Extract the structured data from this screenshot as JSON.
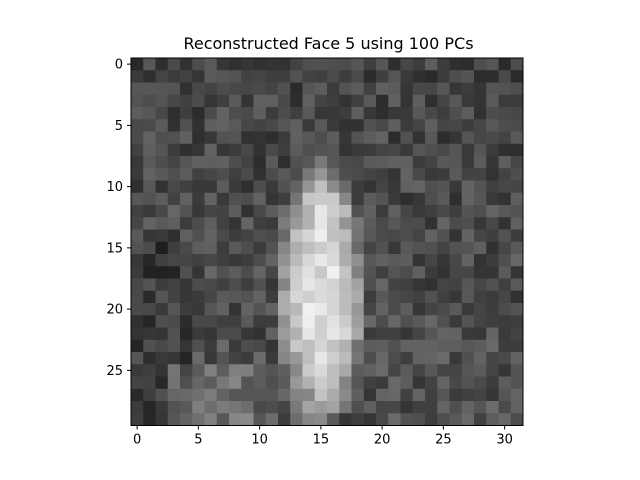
{
  "chart_data": {
    "type": "heatmap",
    "title": "Reconstructed Face 5 using 100 PCs",
    "colormap": "gray",
    "colors": {
      "dark": "#000000",
      "light": "#ffffff",
      "frame": "#000000"
    },
    "columns": 32,
    "rows": 30,
    "xlim": [
      -0.5,
      31.5
    ],
    "ylim": [
      29.5,
      -0.5
    ],
    "x_ticks": [
      0,
      5,
      10,
      15,
      20,
      25,
      30
    ],
    "y_ticks": [
      0,
      5,
      10,
      15,
      20,
      25
    ],
    "x_tick_labels": [
      "0",
      "5",
      "10",
      "15",
      "20",
      "25",
      "30"
    ],
    "y_tick_labels": [
      "0",
      "5",
      "10",
      "15",
      "20",
      "25"
    ],
    "values_range": [
      0,
      1
    ],
    "grid": false,
    "legend": "none"
  }
}
